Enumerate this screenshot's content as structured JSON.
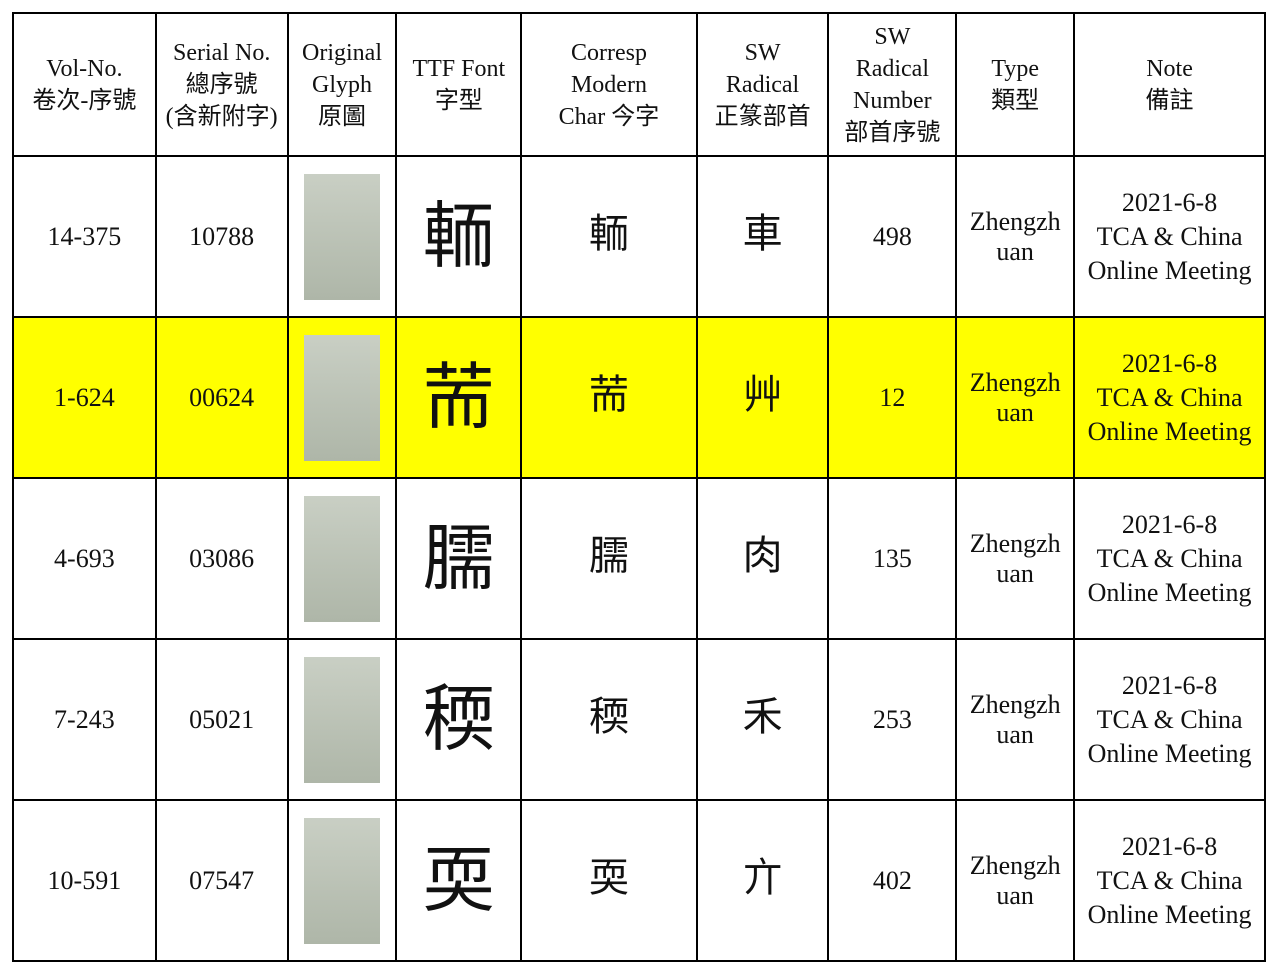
{
  "table": {
    "headers": [
      [
        "Vol-No.",
        "卷次-序號"
      ],
      [
        "Serial No.",
        "總序號",
        "(含新附字)"
      ],
      [
        "Original",
        "Glyph",
        "原圖"
      ],
      [
        "TTF Font",
        "字型"
      ],
      [
        "Corresp",
        "Modern",
        "Char 今字"
      ],
      [
        "SW",
        "Radical",
        "正篆部首"
      ],
      [
        "SW",
        "Radical",
        "Number",
        "部首序號"
      ],
      [
        "Type",
        "類型"
      ],
      [
        "Note",
        "備註"
      ]
    ],
    "rows": [
      {
        "vol_no": "14-375",
        "serial": "10788",
        "modern_char": "輀",
        "radical": "車",
        "radical_number": "498",
        "type": "Zhengzhuan",
        "note": [
          "2021-6-8",
          "TCA & China",
          "Online Meeting"
        ],
        "highlight": false
      },
      {
        "vol_no": "1-624",
        "serial": "00624",
        "modern_char": "荋",
        "radical": "艸",
        "radical_number": "12",
        "type": "Zhengzhuan",
        "note": [
          "2021-6-8",
          "TCA & China",
          "Online Meeting"
        ],
        "highlight": true
      },
      {
        "vol_no": "4-693",
        "serial": "03086",
        "modern_char": "臑",
        "radical": "肉",
        "radical_number": "135",
        "type": "Zhengzhuan",
        "note": [
          "2021-6-8",
          "TCA & China",
          "Online Meeting"
        ],
        "highlight": false
      },
      {
        "vol_no": "7-243",
        "serial": "05021",
        "modern_char": "稬",
        "radical": "禾",
        "radical_number": "253",
        "type": "Zhengzhuan",
        "note": [
          "2021-6-8",
          "TCA & China",
          "Online Meeting"
        ],
        "highlight": false
      },
      {
        "vol_no": "10-591",
        "serial": "07547",
        "modern_char": "耎",
        "radical": "亣",
        "radical_number": "402",
        "type": "Zhengzhuan",
        "note": [
          "2021-6-8",
          "TCA & China",
          "Online Meeting"
        ],
        "highlight": false
      }
    ]
  }
}
